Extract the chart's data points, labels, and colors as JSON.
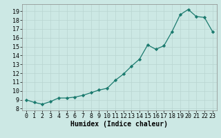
{
  "x": [
    0,
    1,
    2,
    3,
    4,
    5,
    6,
    7,
    8,
    9,
    10,
    11,
    12,
    13,
    14,
    15,
    16,
    17,
    18,
    19,
    20,
    21,
    22,
    23
  ],
  "y": [
    9.0,
    8.7,
    8.5,
    8.8,
    9.2,
    9.2,
    9.3,
    9.5,
    9.8,
    10.1,
    10.3,
    11.2,
    11.9,
    12.8,
    13.6,
    15.2,
    14.7,
    15.1,
    16.7,
    18.6,
    19.2,
    18.4,
    18.3,
    16.7
  ],
  "xlabel": "Humidex (Indice chaleur)",
  "xlim": [
    -0.5,
    23.5
  ],
  "ylim": [
    7.8,
    19.8
  ],
  "yticks": [
    8,
    9,
    10,
    11,
    12,
    13,
    14,
    15,
    16,
    17,
    18,
    19
  ],
  "xticks": [
    0,
    1,
    2,
    3,
    4,
    5,
    6,
    7,
    8,
    9,
    10,
    11,
    12,
    13,
    14,
    15,
    16,
    17,
    18,
    19,
    20,
    21,
    22,
    23
  ],
  "line_color": "#1a7a6e",
  "marker_color": "#1a7a6e",
  "bg_color": "#cce8e4",
  "grid_major_color": "#b8d4d0",
  "grid_minor_color": "#d4ecec",
  "label_fontsize": 7,
  "tick_fontsize": 6
}
